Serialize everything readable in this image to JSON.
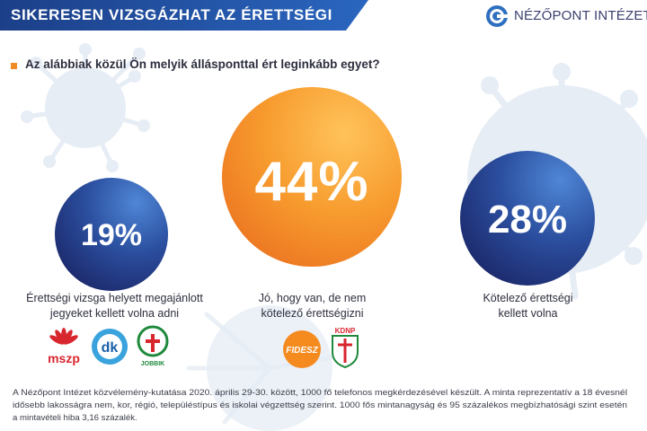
{
  "header": {
    "title": "SIKERESEN VIZSGÁZHAT AZ ÉRETTSÉGI"
  },
  "brand": {
    "name": "NÉZŐPONT INTÉZET",
    "icon": "nezopont-logo-icon"
  },
  "question": "Az alábbiak közül Ön melyik állásponttal ért leginkább egyet?",
  "chart_data": {
    "type": "bubble",
    "title": "SIKERESEN VIZSGÁZHAT AZ ÉRETTSÉGI",
    "question": "Az alábbiak közül Ön melyik állásponttal ért leginkább egyet?",
    "categories": [
      "Érettségi vizsga helyett megajánlott jegyeket kellett volna adni",
      "Jó, hogy van, de nem kötelező érettségizni",
      "Kötelező érettségi kellett volna"
    ],
    "values": [
      19,
      44,
      28
    ],
    "unit": "%",
    "value_labels": [
      "19%",
      "44%",
      "28%"
    ],
    "colors": [
      "#1f2f78",
      "#f58a2a",
      "#1f2f78"
    ],
    "associated_parties": [
      [
        "mszp",
        "dk",
        "JOBBIK"
      ],
      [
        "FIDESZ",
        "KDNP"
      ],
      []
    ]
  },
  "options": [
    {
      "pct": "19%",
      "label_line1": "Érettségi vizsga helyett megajánlott",
      "label_line2": "jegyeket kellett volna adni"
    },
    {
      "pct": "44%",
      "label_line1": "Jó, hogy van, de nem",
      "label_line2": "kötelező érettségizni"
    },
    {
      "pct": "28%",
      "label_line1": "Kötelező érettségi",
      "label_line2": "kellett volna"
    }
  ],
  "parties": {
    "mszp": "mszp",
    "dk": "dk",
    "jobbik": "JOBBIK",
    "fidesz": "FIDESZ",
    "kdnp": "KDNP"
  },
  "footnote": {
    "line1": "A Nézőpont Intézet közvélemény-kutatása 2020. április 29-30. között, 1000 fő telefonos megkérdezésével készült. A minta reprezentatív a 18 évesnél",
    "line2": "idősebb lakosságra nem, kor, régió, településtípus és iskolai végzettség szerint. 1000 fős mintanagyság és 95 százalékos megbízhatósági szint esetén",
    "line3": "a mintavételi hiba 3,16 százalék."
  },
  "colors": {
    "accent_orange": "#f58a2a",
    "navy": "#1f2f78",
    "header_blue": "#1d4a9c",
    "text": "#2d2f3e",
    "virus": "#e6edf5"
  }
}
